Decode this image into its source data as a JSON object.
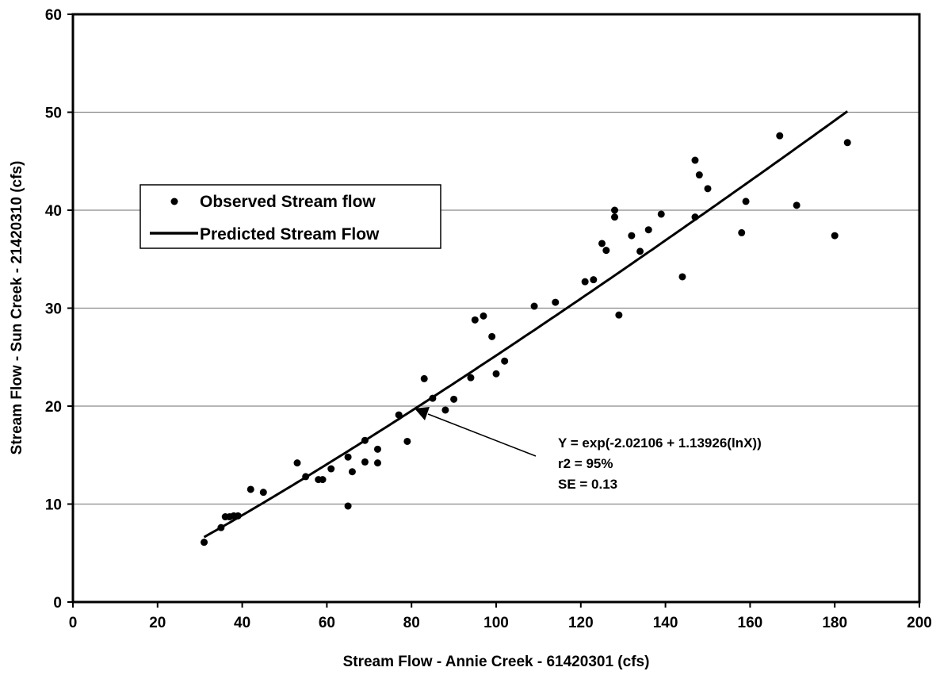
{
  "chart_data": {
    "type": "scatter",
    "title": "",
    "xlabel": "Stream Flow - Annie Creek - 61420301 (cfs)",
    "ylabel": "Stream Flow - Sun Creek - 21420310 (cfs)",
    "xlim": [
      0,
      200
    ],
    "ylim": [
      0,
      60
    ],
    "xticks": [
      0,
      20,
      40,
      60,
      80,
      100,
      120,
      140,
      160,
      180,
      200
    ],
    "yticks": [
      0,
      10,
      20,
      30,
      40,
      50,
      60
    ],
    "grid": "horizontal",
    "legend_position": "upper-left",
    "legend": [
      {
        "label": "Observed Stream flow",
        "kind": "marker"
      },
      {
        "label": "Predicted Stream Flow",
        "kind": "line"
      }
    ],
    "series": [
      {
        "name": "Observed Stream flow",
        "kind": "scatter",
        "color": "#000000",
        "points": [
          [
            31,
            6.1
          ],
          [
            35,
            7.6
          ],
          [
            36,
            8.7
          ],
          [
            37,
            8.7
          ],
          [
            38,
            8.8
          ],
          [
            39,
            8.8
          ],
          [
            42,
            11.5
          ],
          [
            45,
            11.2
          ],
          [
            53,
            14.2
          ],
          [
            55,
            12.8
          ],
          [
            58,
            12.5
          ],
          [
            59,
            12.5
          ],
          [
            61,
            13.6
          ],
          [
            65,
            14.8
          ],
          [
            65,
            9.8
          ],
          [
            66,
            13.3
          ],
          [
            69,
            14.3
          ],
          [
            69,
            16.5
          ],
          [
            72,
            14.2
          ],
          [
            72,
            15.6
          ],
          [
            77,
            19.1
          ],
          [
            79,
            16.4
          ],
          [
            83,
            22.8
          ],
          [
            85,
            20.8
          ],
          [
            88,
            19.6
          ],
          [
            90,
            20.7
          ],
          [
            94,
            22.9
          ],
          [
            95,
            28.8
          ],
          [
            97,
            29.2
          ],
          [
            99,
            27.1
          ],
          [
            100,
            23.3
          ],
          [
            102,
            24.6
          ],
          [
            109,
            30.2
          ],
          [
            114,
            30.6
          ],
          [
            121,
            32.7
          ],
          [
            123,
            32.9
          ],
          [
            125,
            36.6
          ],
          [
            126,
            35.9
          ],
          [
            128,
            40.0
          ],
          [
            128,
            39.3
          ],
          [
            129,
            29.3
          ],
          [
            132,
            37.4
          ],
          [
            134,
            35.8
          ],
          [
            136,
            38.0
          ],
          [
            139,
            39.6
          ],
          [
            144,
            33.2
          ],
          [
            147,
            45.1
          ],
          [
            147,
            39.3
          ],
          [
            148,
            43.6
          ],
          [
            150,
            42.2
          ],
          [
            158,
            37.7
          ],
          [
            159,
            40.9
          ],
          [
            167,
            47.6
          ],
          [
            171,
            40.5
          ],
          [
            180,
            37.4
          ],
          [
            183,
            46.9
          ]
        ]
      },
      {
        "name": "Predicted Stream Flow",
        "kind": "line",
        "color": "#000000",
        "model": "Y = exp(-2.02106 + 1.13926 ln X)",
        "x_range": [
          31,
          183
        ]
      }
    ],
    "annotation": {
      "lines": [
        "Y = exp(-2.02106 + 1.13926(lnX))",
        "r2 = 95%",
        "SE = 0.13"
      ],
      "arrow_target": [
        81,
        20
      ]
    }
  }
}
